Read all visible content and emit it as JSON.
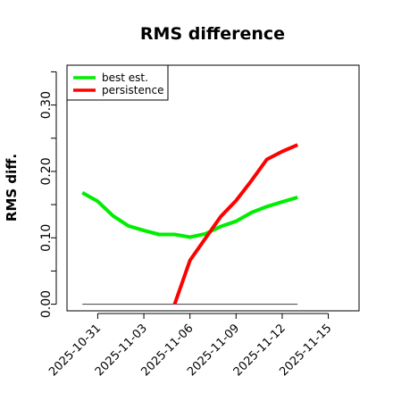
{
  "chart_data": {
    "type": "line",
    "title": "RMS difference",
    "ylabel": "RMS diff.",
    "xlabel": "",
    "xlim": [
      "2025-10-29",
      "2025-11-17"
    ],
    "ylim": [
      -0.01,
      0.36
    ],
    "yticks": [
      0.0,
      0.1,
      0.2,
      0.3
    ],
    "ytick_labels": [
      "0.00",
      "0.10",
      "0.20",
      "0.30"
    ],
    "yticks_minor": [
      0.05,
      0.15,
      0.25,
      0.35
    ],
    "xticks": [
      "2025-10-31",
      "2025-11-03",
      "2025-11-06",
      "2025-11-09",
      "2025-11-12",
      "2025-11-15"
    ],
    "xtick_labels": [
      "2025-10-31",
      "2025-11-03",
      "2025-11-06",
      "2025-11-09",
      "2025-11-12",
      "2025-11-15"
    ],
    "legend_position": "top-left",
    "series": [
      {
        "name": "best est.",
        "color": "#00ee00",
        "x": [
          "2025-10-30",
          "2025-10-31",
          "2025-11-01",
          "2025-11-02",
          "2025-11-03",
          "2025-11-04",
          "2025-11-05",
          "2025-11-06",
          "2025-11-07",
          "2025-11-08",
          "2025-11-09",
          "2025-11-10",
          "2025-11-11",
          "2025-11-12",
          "2025-11-13"
        ],
        "y": [
          0.168,
          0.155,
          0.133,
          0.118,
          0.111,
          0.105,
          0.105,
          0.101,
          0.106,
          0.117,
          0.125,
          0.138,
          0.147,
          0.154,
          0.161
        ]
      },
      {
        "name": "persistence",
        "color": "#ff0000",
        "x": [
          "2025-11-05",
          "2025-11-06",
          "2025-11-07",
          "2025-11-08",
          "2025-11-09",
          "2025-11-10",
          "2025-11-11",
          "2025-11-12",
          "2025-11-13"
        ],
        "y": [
          0.0,
          0.066,
          0.099,
          0.132,
          0.156,
          0.186,
          0.218,
          0.23,
          0.24
        ]
      }
    ],
    "reference_line": {
      "y": 0.0,
      "x": [
        "2025-10-30",
        "2025-11-13"
      ],
      "color": "#555555"
    }
  }
}
